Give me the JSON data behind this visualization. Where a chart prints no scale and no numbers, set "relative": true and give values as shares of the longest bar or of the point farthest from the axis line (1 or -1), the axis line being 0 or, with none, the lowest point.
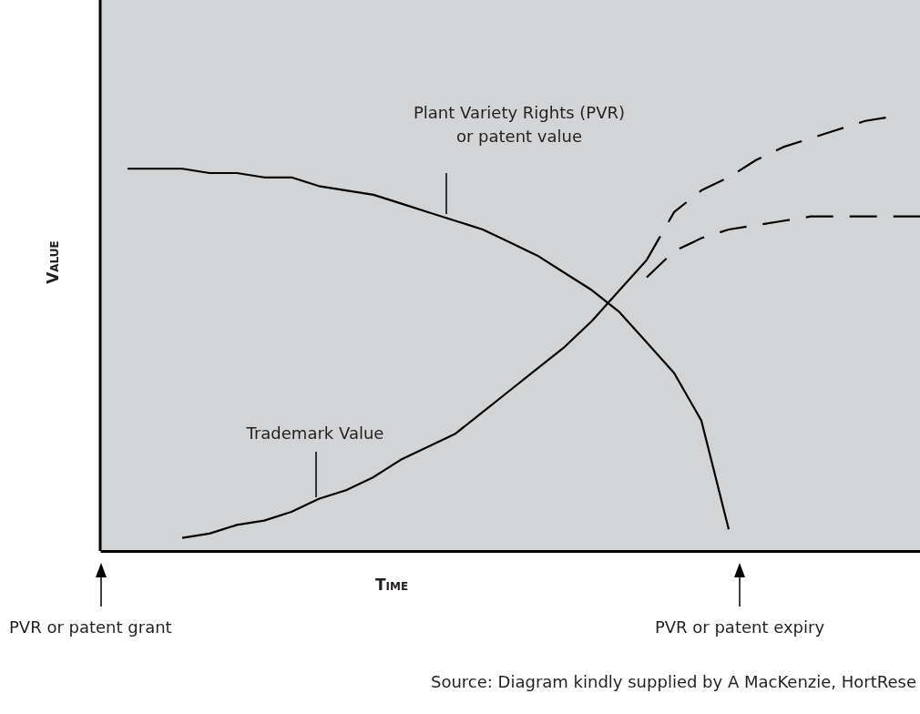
{
  "chart_data": {
    "type": "line",
    "relative": true,
    "xlabel": "Time",
    "ylabel": "Value",
    "categories": [
      null,
      null,
      null,
      null,
      null,
      null,
      null,
      null,
      null,
      null,
      null,
      null,
      null,
      null,
      null,
      null,
      null,
      null,
      null,
      null,
      null,
      null,
      null,
      null,
      null,
      null,
      null,
      null,
      null,
      null,
      null
    ],
    "series": [
      {
        "color": "#000000",
        "line_style": "solid",
        "values": [
          null,
          0.88,
          0.88,
          0.88,
          0.87,
          0.87,
          0.86,
          0.86,
          0.84,
          0.83,
          0.82,
          0.8,
          0.78,
          0.76,
          0.74,
          0.71,
          0.68,
          0.64,
          0.6,
          0.55,
          0.48,
          0.41,
          0.3,
          0.05,
          null,
          null,
          null,
          null,
          null,
          null,
          null
        ]
      },
      {
        "color": "#000000",
        "line_style": "solid",
        "values": [
          null,
          null,
          null,
          0.03,
          0.04,
          0.06,
          0.07,
          0.09,
          0.12,
          0.14,
          0.17,
          0.21,
          0.24,
          0.27,
          0.32,
          0.37,
          0.42,
          0.47,
          0.53,
          0.6,
          0.67,
          null,
          null,
          null,
          null,
          null,
          null,
          null,
          null,
          null,
          null
        ]
      },
      {
        "color": "#000000",
        "line_style": "dashed",
        "values": [
          null,
          null,
          null,
          null,
          null,
          null,
          null,
          null,
          null,
          null,
          null,
          null,
          null,
          null,
          null,
          null,
          null,
          null,
          null,
          null,
          0.67,
          0.78,
          0.83,
          0.86,
          0.9,
          0.93,
          0.95,
          0.97,
          0.99,
          1.0,
          null
        ]
      },
      {
        "color": "#000000",
        "line_style": "dashed",
        "values": [
          null,
          null,
          null,
          null,
          null,
          null,
          null,
          null,
          null,
          null,
          null,
          null,
          null,
          null,
          null,
          null,
          null,
          null,
          null,
          null,
          0.63,
          0.69,
          0.72,
          0.74,
          0.75,
          0.76,
          0.77,
          0.77,
          0.77,
          0.77,
          0.77
        ]
      }
    ],
    "annotations": [
      "Plant Variety Rights (PVR)\nor patent value",
      "Trademark Value",
      "PVR or patent grant",
      "PVR or patent expiry",
      "Source: Diagram kindly supplied by A MacKenzie, HortRese"
    ]
  }
}
